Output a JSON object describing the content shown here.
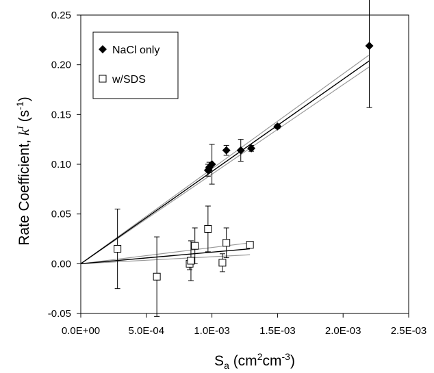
{
  "chart_data": {
    "type": "scatter",
    "xlabel": {
      "base": "S",
      "sub": "a",
      "rest": " (cm",
      "sup1": "2",
      "mid": "cm",
      "sup2": "-3",
      "end": ")"
    },
    "ylabel": {
      "base": "Rate Coefficient, ",
      "k": "k",
      "ksup": "I",
      "unit": " (s",
      "usup": "-1",
      "end": ")"
    },
    "xlim": [
      0,
      0.0025
    ],
    "ylim": [
      -0.05,
      0.25
    ],
    "x_ticks": [
      {
        "value": 0,
        "label": "0.0E+00"
      },
      {
        "value": 0.0005,
        "label": "5.0E-04"
      },
      {
        "value": 0.001,
        "label": "1.0E-03"
      },
      {
        "value": 0.0015,
        "label": "1.5E-03"
      },
      {
        "value": 0.002,
        "label": "2.0E-03"
      },
      {
        "value": 0.0025,
        "label": "2.5E-03"
      }
    ],
    "y_ticks": [
      {
        "value": -0.05,
        "label": "-0.05"
      },
      {
        "value": 0.0,
        "label": "0.00"
      },
      {
        "value": 0.05,
        "label": "0.05"
      },
      {
        "value": 0.1,
        "label": "0.10"
      },
      {
        "value": 0.15,
        "label": "0.15"
      },
      {
        "value": 0.2,
        "label": "0.20"
      },
      {
        "value": 0.25,
        "label": "0.25"
      }
    ],
    "grid": false,
    "legend_position": "top-left",
    "series": [
      {
        "name": "NaCl only",
        "marker": "filled-diamond",
        "color": "#000000",
        "points": [
          {
            "x": 0.00097,
            "y": 0.094,
            "err": 0.006
          },
          {
            "x": 0.00098,
            "y": 0.097,
            "err": 0.005
          },
          {
            "x": 0.001,
            "y": 0.1,
            "err": 0.02
          },
          {
            "x": 0.00111,
            "y": 0.114,
            "err": 0.005
          },
          {
            "x": 0.00122,
            "y": 0.114,
            "err": 0.011
          },
          {
            "x": 0.0013,
            "y": 0.116,
            "err": 0.003
          },
          {
            "x": 0.0015,
            "y": 0.138,
            "err": 0.002
          },
          {
            "x": 0.0022,
            "y": 0.219,
            "err": 0.062
          }
        ],
        "fit": {
          "x": [
            0,
            0.0022
          ],
          "y": [
            0,
            0.204
          ]
        },
        "confidence": [
          {
            "x": [
              0,
              0.0022
            ],
            "y": [
              0,
              0.21
            ]
          },
          {
            "x": [
              0,
              0.0022
            ],
            "y": [
              0,
              0.198
            ]
          }
        ]
      },
      {
        "name": "w/SDS",
        "marker": "open-square",
        "color": "#000000",
        "points": [
          {
            "x": 0.00028,
            "y": 0.015,
            "err": 0.04
          },
          {
            "x": 0.00058,
            "y": -0.013,
            "err": 0.04
          },
          {
            "x": 0.00083,
            "y": 0.0,
            "err": 0.006
          },
          {
            "x": 0.00084,
            "y": 0.003,
            "err": 0.02
          },
          {
            "x": 0.00087,
            "y": 0.018,
            "err": 0.018
          },
          {
            "x": 0.00097,
            "y": 0.035,
            "err": 0.023
          },
          {
            "x": 0.00108,
            "y": 0.001,
            "err": 0.009
          },
          {
            "x": 0.00111,
            "y": 0.021,
            "err": 0.015
          },
          {
            "x": 0.00129,
            "y": 0.019,
            "err": 0.003
          }
        ],
        "fit": {
          "x": [
            0,
            0.00129
          ],
          "y": [
            0,
            0.015
          ]
        },
        "confidence": [
          {
            "x": [
              0,
              0.00129
            ],
            "y": [
              0,
              0.021
            ]
          },
          {
            "x": [
              0,
              0.00129
            ],
            "y": [
              0,
              0.009
            ]
          }
        ]
      }
    ]
  },
  "colors": {
    "axis": "#000000",
    "fit": "#000000",
    "confidence": "#9a9a9a"
  }
}
